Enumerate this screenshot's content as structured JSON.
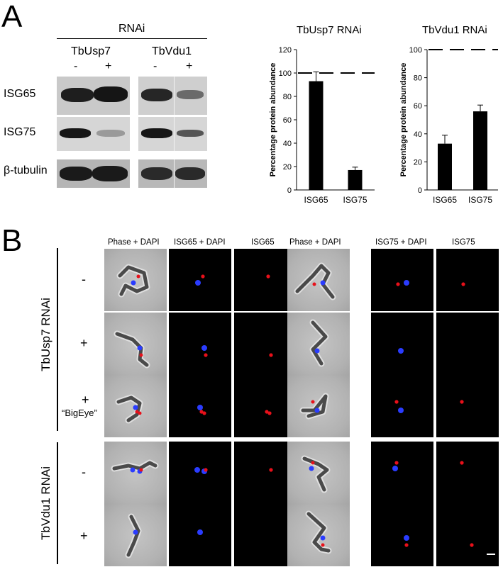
{
  "panel_a": {
    "letter": "A",
    "rnai_header": "RNAi",
    "groups": [
      {
        "name": "TbUsp7",
        "minus": "-",
        "plus": "+"
      },
      {
        "name": "TbVdu1",
        "minus": "-",
        "plus": "+"
      }
    ],
    "row_labels": [
      "ISG65",
      "ISG75",
      "β-tubulin"
    ],
    "blot_intensity": {
      "TbUsp7": {
        "ISG65": [
          1.0,
          1.0
        ],
        "ISG75": [
          1.0,
          0.2
        ],
        "β-tubulin": [
          1.0,
          1.0
        ]
      },
      "TbVdu1": {
        "ISG65": [
          0.9,
          0.45
        ],
        "ISG75": [
          0.95,
          0.5
        ],
        "β-tubulin": [
          0.85,
          0.85
        ]
      }
    }
  },
  "chart_data": [
    {
      "type": "bar",
      "title": "TbUsp7 RNAi",
      "ylabel": "Percentage protein abundance",
      "xlabel": "",
      "categories": [
        "ISG65",
        "ISG75"
      ],
      "values": [
        93,
        17
      ],
      "errors": [
        8,
        2.5
      ],
      "ylim": [
        0,
        120
      ],
      "yticks": [
        0,
        20,
        40,
        60,
        80,
        100,
        120
      ],
      "reference_line": 100,
      "grid": false,
      "bar_color": "#000000"
    },
    {
      "type": "bar",
      "title": "TbVdu1 RNAi",
      "ylabel": "Percentage protein abundance",
      "xlabel": "",
      "categories": [
        "ISG65",
        "ISG75"
      ],
      "values": [
        33,
        56
      ],
      "errors": [
        6,
        4.5
      ],
      "ylim": [
        0,
        100
      ],
      "yticks": [
        0,
        20,
        40,
        60,
        80,
        100
      ],
      "reference_line": 100,
      "grid": false,
      "bar_color": "#000000"
    }
  ],
  "panel_b": {
    "letter": "B",
    "column_headers": [
      "Phase + DAPI",
      "ISG65 + DAPI",
      "ISG65",
      "Phase + DAPI",
      "ISG75 + DAPI",
      "ISG75"
    ],
    "group_labels": [
      "TbUsp7  RNAi",
      "TbVdu1 RNAi"
    ],
    "row_labels": [
      {
        "symbol": "-",
        "note": ""
      },
      {
        "symbol": "+",
        "note": ""
      },
      {
        "symbol": "+",
        "note": "“BigEye”"
      },
      {
        "symbol": "-",
        "note": ""
      },
      {
        "symbol": "+",
        "note": ""
      }
    ],
    "colors": {
      "dapi": "#2a3cff",
      "isg": "#e8101a",
      "phase_cell": "#4a4a4a"
    }
  }
}
